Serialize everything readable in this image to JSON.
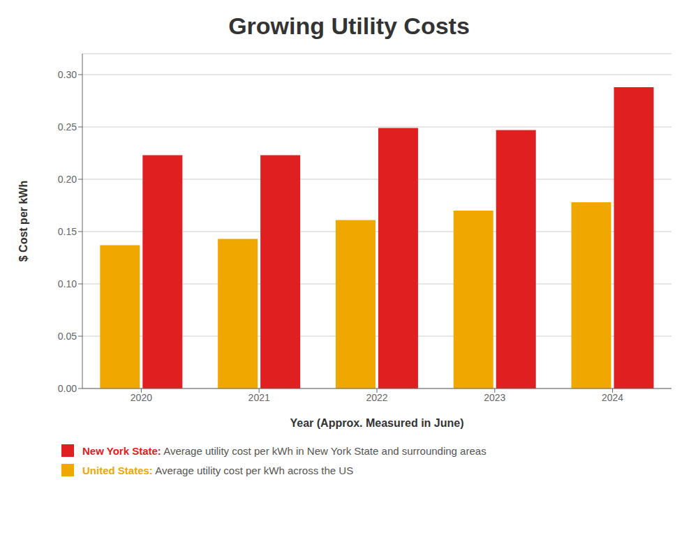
{
  "chart_data": {
    "type": "bar",
    "title": "Growing Utility Costs",
    "x_label": "Year (Approx. Measured in June)",
    "y_label": "$ Cost per kWh",
    "categories": [
      "2020",
      "2021",
      "2022",
      "2023",
      "2024"
    ],
    "series": [
      {
        "name": "United States:",
        "description": " Average utility cost per kWh across the US",
        "color": "#F0A800",
        "values": [
          0.137,
          0.143,
          0.161,
          0.17,
          0.178
        ]
      },
      {
        "name": "New York State:",
        "description": " Average utility cost per kWh in New York State and surrounding areas",
        "color": "#E02020",
        "values": [
          0.223,
          0.223,
          0.249,
          0.247,
          0.288
        ]
      }
    ],
    "ylim": [
      0,
      0.32
    ],
    "yticks": [
      {
        "value": 0,
        "label": "0.00"
      },
      {
        "value": 0.05,
        "label": "0.05"
      },
      {
        "value": 0.1,
        "label": "0.10"
      },
      {
        "value": 0.15,
        "label": "0.15"
      },
      {
        "value": 0.2,
        "label": "0.20"
      },
      {
        "value": 0.25,
        "label": "0.25"
      },
      {
        "value": 0.3,
        "label": "0.30"
      }
    ],
    "grid": true
  }
}
